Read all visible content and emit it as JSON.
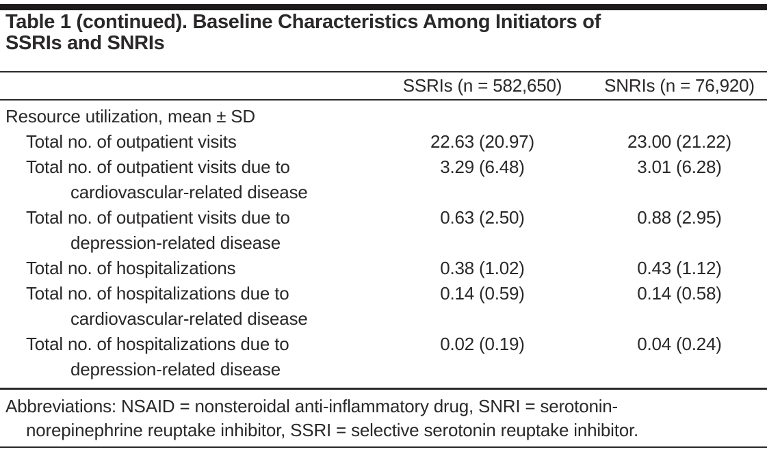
{
  "header": {
    "title_lines": [
      "Table 1 (continued). Baseline Characteristics Among Initiators of",
      "SSRIs and SNRIs"
    ]
  },
  "table": {
    "columns": {
      "ssri": "SSRIs (n = 582,650)",
      "snri": "SNRIs (n = 76,920)"
    },
    "rows": [
      {
        "type": "section",
        "label": "Resource utilization, mean ± SD"
      },
      {
        "label": "Total no. of outpatient visits",
        "ssri": "22.63 (20.97)",
        "snri": "23.00 (21.22)"
      },
      {
        "label": "Total no. of outpatient visits due to",
        "label2": "cardiovascular-related disease",
        "ssri": "3.29 (6.48)",
        "snri": "3.01 (6.28)"
      },
      {
        "label": "Total no. of outpatient visits due to",
        "label2": "depression-related disease",
        "ssri": "0.63 (2.50)",
        "snri": "0.88 (2.95)"
      },
      {
        "label": "Total no. of hospitalizations",
        "ssri": "0.38 (1.02)",
        "snri": "0.43 (1.12)"
      },
      {
        "label": "Total no. of hospitalizations due to",
        "label2": "cardiovascular-related disease",
        "ssri": "0.14 (0.59)",
        "snri": "0.14 (0.58)"
      },
      {
        "label": "Total no. of hospitalizations due to",
        "label2": "depression-related disease",
        "ssri": "0.02 (0.19)",
        "snri": "0.04 (0.24)"
      }
    ]
  },
  "footnote": {
    "lines": [
      "Abbreviations: NSAID = nonsteroidal anti-inflammatory drug, SNRI = serotonin-",
      "norepinephrine reuptake inhibitor, SSRI = selective serotonin reuptake inhibitor."
    ]
  },
  "colors": {
    "text": "#2a2828",
    "rule": "#2a2828",
    "top_bar": "#1c1a1a",
    "background": "#ffffff"
  }
}
